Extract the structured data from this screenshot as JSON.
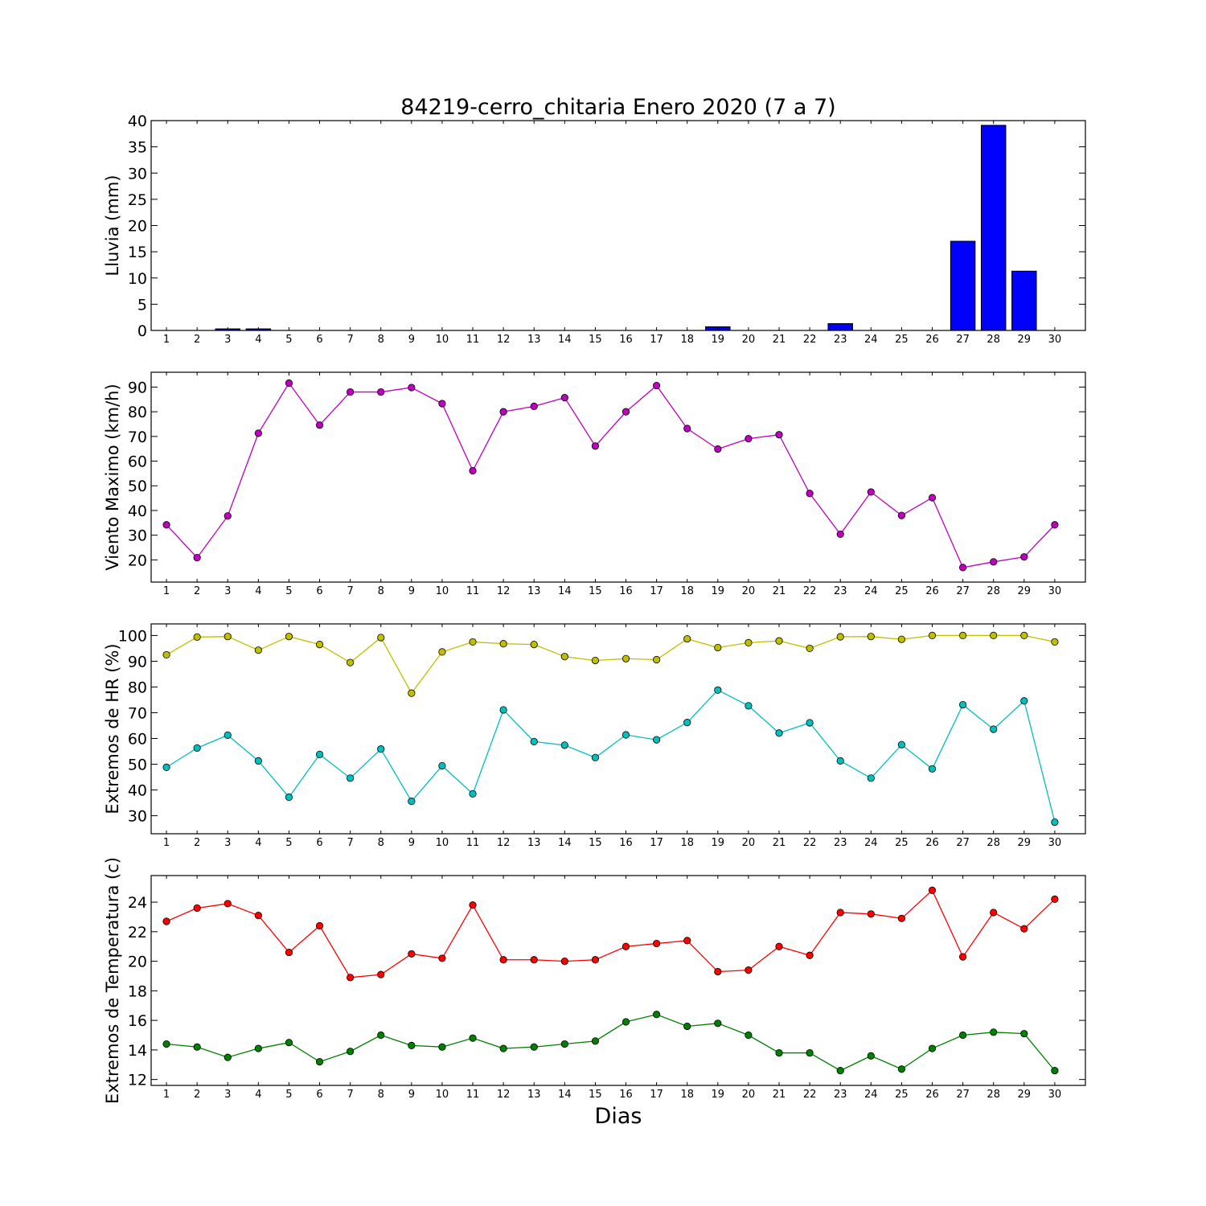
{
  "title": "84219-cerro_chitaria Enero 2020  (7 a 7)",
  "xlabel": "Dias",
  "chart_data": [
    {
      "type": "bar",
      "ylabel": "Lluvia (mm)",
      "ylim": [
        0,
        40
      ],
      "yticks": [
        0,
        5,
        10,
        15,
        20,
        25,
        30,
        35,
        40
      ],
      "x": [
        1,
        2,
        3,
        4,
        5,
        6,
        7,
        8,
        9,
        10,
        11,
        12,
        13,
        14,
        15,
        16,
        17,
        18,
        19,
        20,
        21,
        22,
        23,
        24,
        25,
        26,
        27,
        28,
        29,
        30
      ],
      "color": "#0000ff",
      "series": [
        {
          "values": [
            0,
            0,
            0.3,
            0.3,
            0,
            0,
            0,
            0,
            0,
            0,
            0,
            0,
            0,
            0,
            0,
            0,
            0,
            0,
            0.7,
            0,
            0,
            0,
            1.3,
            0,
            0,
            0,
            17.0,
            39.1,
            11.3,
            0
          ]
        }
      ]
    },
    {
      "type": "line",
      "ylabel": "Viento Maximo (km/h)",
      "ylim": [
        11,
        96
      ],
      "yticks": [
        20,
        30,
        40,
        50,
        60,
        70,
        80,
        90
      ],
      "x": [
        1,
        2,
        3,
        4,
        5,
        6,
        7,
        8,
        9,
        10,
        11,
        12,
        13,
        14,
        15,
        16,
        17,
        18,
        19,
        20,
        21,
        22,
        23,
        24,
        25,
        26,
        27,
        28,
        29,
        30
      ],
      "series": [
        {
          "color": "#bf00bf",
          "values": [
            34.2,
            20.9,
            37.8,
            71.3,
            91.6,
            74.6,
            88.0,
            88.0,
            89.8,
            83.3,
            56.1,
            80.0,
            82.2,
            85.7,
            66.1,
            80.0,
            90.6,
            73.2,
            64.9,
            69.1,
            70.7,
            46.9,
            30.4,
            47.5,
            38.0,
            45.2,
            16.9,
            19.2,
            21.2,
            34.2
          ]
        }
      ]
    },
    {
      "type": "line",
      "ylabel": "Extremos de HR (%)",
      "ylim": [
        23,
        104.5
      ],
      "yticks": [
        30,
        40,
        50,
        60,
        70,
        80,
        90,
        100
      ],
      "x": [
        1,
        2,
        3,
        4,
        5,
        6,
        7,
        8,
        9,
        10,
        11,
        12,
        13,
        14,
        15,
        16,
        17,
        18,
        19,
        20,
        21,
        22,
        23,
        24,
        25,
        26,
        27,
        28,
        29,
        30
      ],
      "series": [
        {
          "color": "#bfbf00",
          "values": [
            92.5,
            99.4,
            99.6,
            94.3,
            99.6,
            96.5,
            89.5,
            99.2,
            77.6,
            93.6,
            97.5,
            96.8,
            96.5,
            91.8,
            90.3,
            91.0,
            90.6,
            98.7,
            95.3,
            97.2,
            97.9,
            95.0,
            99.5,
            99.6,
            98.5,
            100,
            100,
            100,
            100,
            97.5
          ]
        },
        {
          "color": "#00bfbf",
          "values": [
            48.8,
            56.3,
            61.3,
            51.3,
            37.2,
            53.8,
            44.6,
            55.9,
            35.6,
            49.4,
            38.5,
            71.1,
            58.8,
            57.4,
            52.6,
            61.4,
            59.5,
            66.2,
            78.8,
            72.7,
            62.1,
            66.1,
            51.3,
            44.6,
            57.6,
            48.2,
            73.1,
            63.6,
            74.6,
            27.5
          ]
        }
      ]
    },
    {
      "type": "line",
      "ylabel": "Extremos de Temperatura (c)",
      "ylim": [
        11.6,
        25.8
      ],
      "yticks": [
        12,
        14,
        16,
        18,
        20,
        22,
        24
      ],
      "x": [
        1,
        2,
        3,
        4,
        5,
        6,
        7,
        8,
        9,
        10,
        11,
        12,
        13,
        14,
        15,
        16,
        17,
        18,
        19,
        20,
        21,
        22,
        23,
        24,
        25,
        26,
        27,
        28,
        29,
        30
      ],
      "series": [
        {
          "color": "#ff0000",
          "values": [
            22.7,
            23.6,
            23.9,
            23.1,
            20.6,
            22.4,
            18.9,
            19.1,
            20.5,
            20.2,
            23.8,
            20.1,
            20.1,
            20.0,
            20.1,
            21.0,
            21.2,
            21.4,
            19.3,
            19.4,
            21.0,
            20.4,
            23.3,
            23.2,
            22.9,
            24.8,
            20.3,
            23.3,
            22.2,
            24.2
          ]
        },
        {
          "color": "#008000",
          "values": [
            14.4,
            14.2,
            13.5,
            14.1,
            14.5,
            13.2,
            13.9,
            15.0,
            14.3,
            14.2,
            14.8,
            14.1,
            14.2,
            14.4,
            14.6,
            15.9,
            16.4,
            15.6,
            15.8,
            15.0,
            13.8,
            13.8,
            12.6,
            13.6,
            12.7,
            14.1,
            15.0,
            15.2,
            15.1,
            12.6
          ]
        }
      ]
    }
  ]
}
